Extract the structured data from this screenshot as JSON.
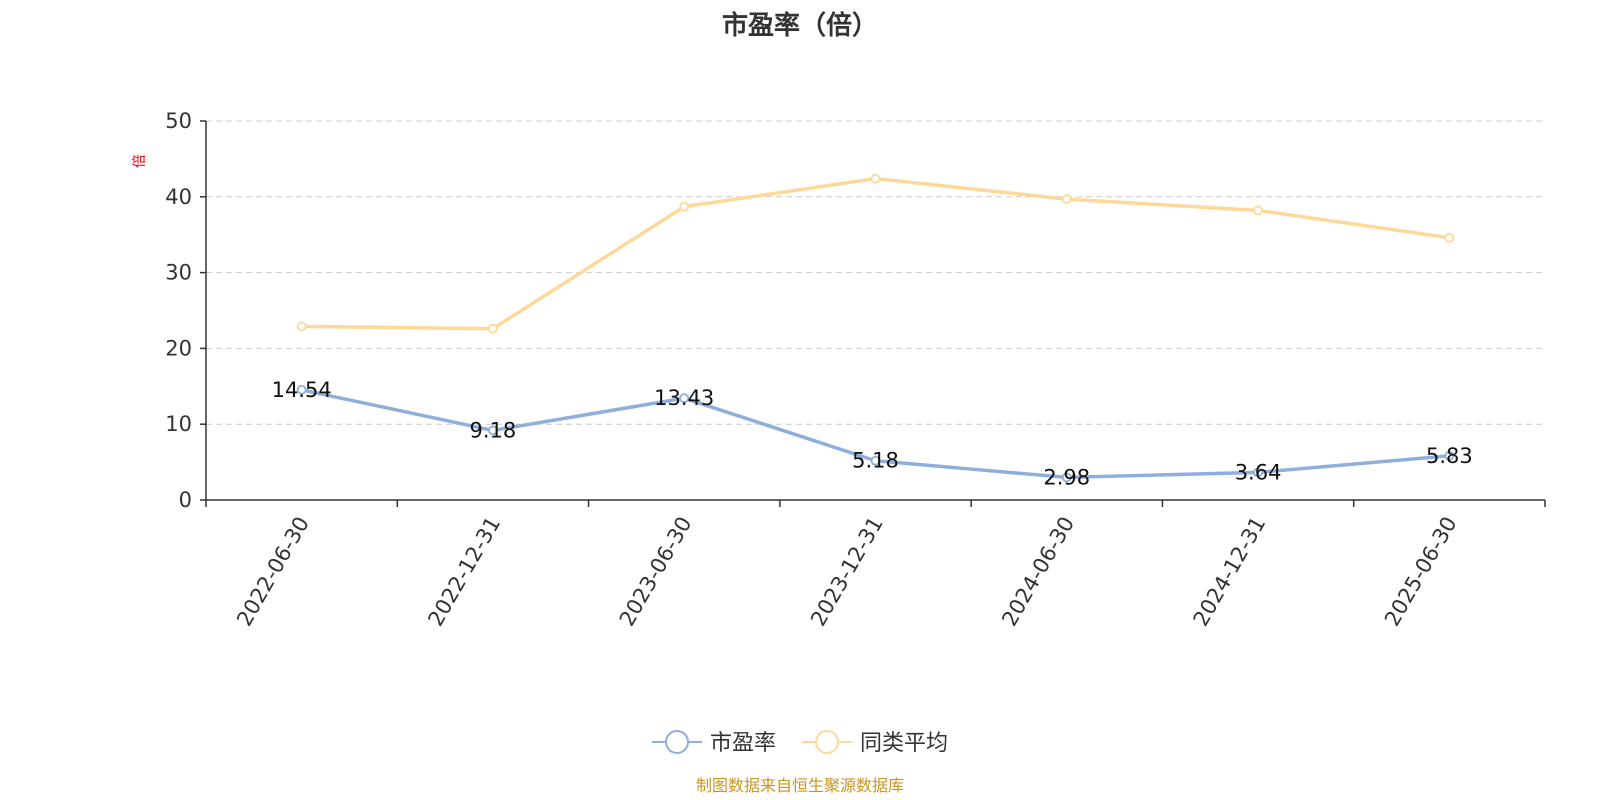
{
  "chart_data": {
    "type": "line",
    "title": "市盈率（倍）",
    "ylabel": "倍",
    "ylim": [
      0,
      50
    ],
    "yticks": [
      0,
      10,
      20,
      30,
      40,
      50
    ],
    "categories": [
      "2022-06-30",
      "2022-12-31",
      "2023-06-30",
      "2023-12-31",
      "2024-06-30",
      "2024-12-31",
      "2025-06-30"
    ],
    "series": [
      {
        "name": "市盈率",
        "color": "#8eaedb",
        "values": [
          14.54,
          9.18,
          13.43,
          5.18,
          2.98,
          3.64,
          5.83
        ],
        "show_labels": true
      },
      {
        "name": "同类平均",
        "color": "#fdd899",
        "values": [
          22.9,
          22.6,
          38.7,
          42.4,
          39.7,
          38.2,
          34.6
        ],
        "show_labels": false
      }
    ],
    "grid": "horizontal-dashed",
    "legend_position": "bottom-center"
  },
  "source_note": "制图数据来自恒生聚源数据库"
}
